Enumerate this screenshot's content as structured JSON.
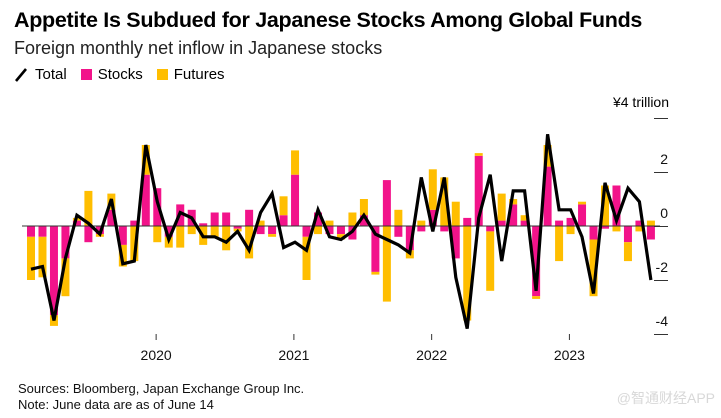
{
  "header": {
    "title": "Appetite Is Subdued for Japanese Stocks Among Global Funds",
    "subtitle": "Foreign monthly net inflow in Japanese stocks"
  },
  "legend": [
    {
      "key": "total",
      "label": "Total",
      "type": "line",
      "color": "#000000"
    },
    {
      "key": "stocks",
      "label": "Stocks",
      "type": "bar",
      "color": "#f2138a"
    },
    {
      "key": "futures",
      "label": "Futures",
      "type": "bar",
      "color": "#ffbe00"
    }
  ],
  "footer": {
    "sources": "Sources: Bloomberg, Japan Exchange Group Inc.",
    "note": "Note: June data are as of June 14"
  },
  "watermark": "@智通财经APP",
  "chart_data": {
    "type": "bar",
    "title": "Appetite Is Subdued for Japanese Stocks Among Global Funds",
    "subtitle": "Foreign monthly net inflow in Japanese stocks",
    "unit_label": "¥4 trillion",
    "xlabel": "",
    "ylabel": "¥ trillion",
    "ylim": [
      -4,
      4
    ],
    "yticks": [
      4,
      2,
      0,
      -2,
      -4
    ],
    "ytick_labels": [
      "¥4 trillion",
      "2",
      "0",
      "-2",
      "-4"
    ],
    "x_ticks": [
      {
        "label": "2020",
        "month_index": 10.9
      },
      {
        "label": "2021",
        "month_index": 22.9
      },
      {
        "label": "2022",
        "month_index": 34.9
      },
      {
        "label": "2023",
        "month_index": 46.9
      }
    ],
    "legend_position": "top-left",
    "grid": false,
    "stacked": true,
    "months": 55,
    "series": [
      {
        "name": "Stocks",
        "type": "bar",
        "color": "#f2138a",
        "values": [
          -0.4,
          -0.4,
          -3.3,
          -1.2,
          0.2,
          -0.6,
          -0.3,
          0.6,
          -0.7,
          0.2,
          1.9,
          1.4,
          -0.4,
          0.8,
          0.6,
          0.1,
          0.5,
          0.5,
          -0.1,
          0.6,
          -0.3,
          -0.3,
          0.4,
          1.9,
          -0.4,
          0.5,
          -0.3,
          -0.3,
          -0.5,
          0.4,
          -1.7,
          1.7,
          -0.4,
          -0.9,
          -0.2,
          0.6,
          -0.2,
          -1.2,
          0.3,
          2.6,
          -0.2,
          0.2,
          0.8,
          0.2,
          -2.6,
          2.2,
          0.2,
          0.3,
          0.8,
          -0.5,
          -0.1,
          1.5,
          -0.6,
          0.2,
          -0.5
        ]
      },
      {
        "name": "Futures",
        "type": "bar",
        "color": "#ffbe00",
        "values": [
          -1.6,
          -1.5,
          -0.4,
          -1.4,
          0.1,
          1.3,
          -0.1,
          0.6,
          -0.8,
          -1.3,
          1.1,
          -0.6,
          -0.4,
          -0.8,
          -0.3,
          -0.7,
          -0.4,
          -0.9,
          -0.1,
          -1.2,
          0.2,
          -0.1,
          0.7,
          0.9,
          -1.6,
          -0.3,
          0.2,
          -0.2,
          0.5,
          0.6,
          -0.1,
          -2.8,
          0.6,
          -0.3,
          0.2,
          1.5,
          1.8,
          0.9,
          -3.5,
          0.1,
          -2.2,
          1.0,
          0.2,
          0.2,
          -0.1,
          0.8,
          -1.3,
          -0.3,
          0.1,
          -2.1,
          1.5,
          -0.2,
          -0.7,
          -0.2,
          0.2
        ]
      },
      {
        "name": "Total",
        "type": "line",
        "color": "#000000",
        "values": [
          -1.6,
          -1.5,
          -3.5,
          -1.2,
          0.4,
          0.1,
          -0.3,
          1.0,
          -1.4,
          -1.3,
          3.0,
          0.9,
          -0.5,
          0.5,
          0.3,
          -0.4,
          -0.4,
          -0.6,
          -0.2,
          -0.9,
          0.5,
          1.2,
          -0.8,
          -0.6,
          -0.9,
          0.6,
          -0.4,
          -0.5,
          -0.2,
          0.4,
          -0.3,
          -0.5,
          -0.7,
          -1.0,
          1.8,
          -0.2,
          1.8,
          -1.9,
          -3.8,
          0.3,
          1.9,
          -1.3,
          1.3,
          1.3,
          -2.4,
          3.4,
          0.6,
          0.6,
          -0.4,
          -2.5,
          1.6,
          0.2,
          1.4,
          0.9,
          -2.0
        ]
      }
    ]
  }
}
